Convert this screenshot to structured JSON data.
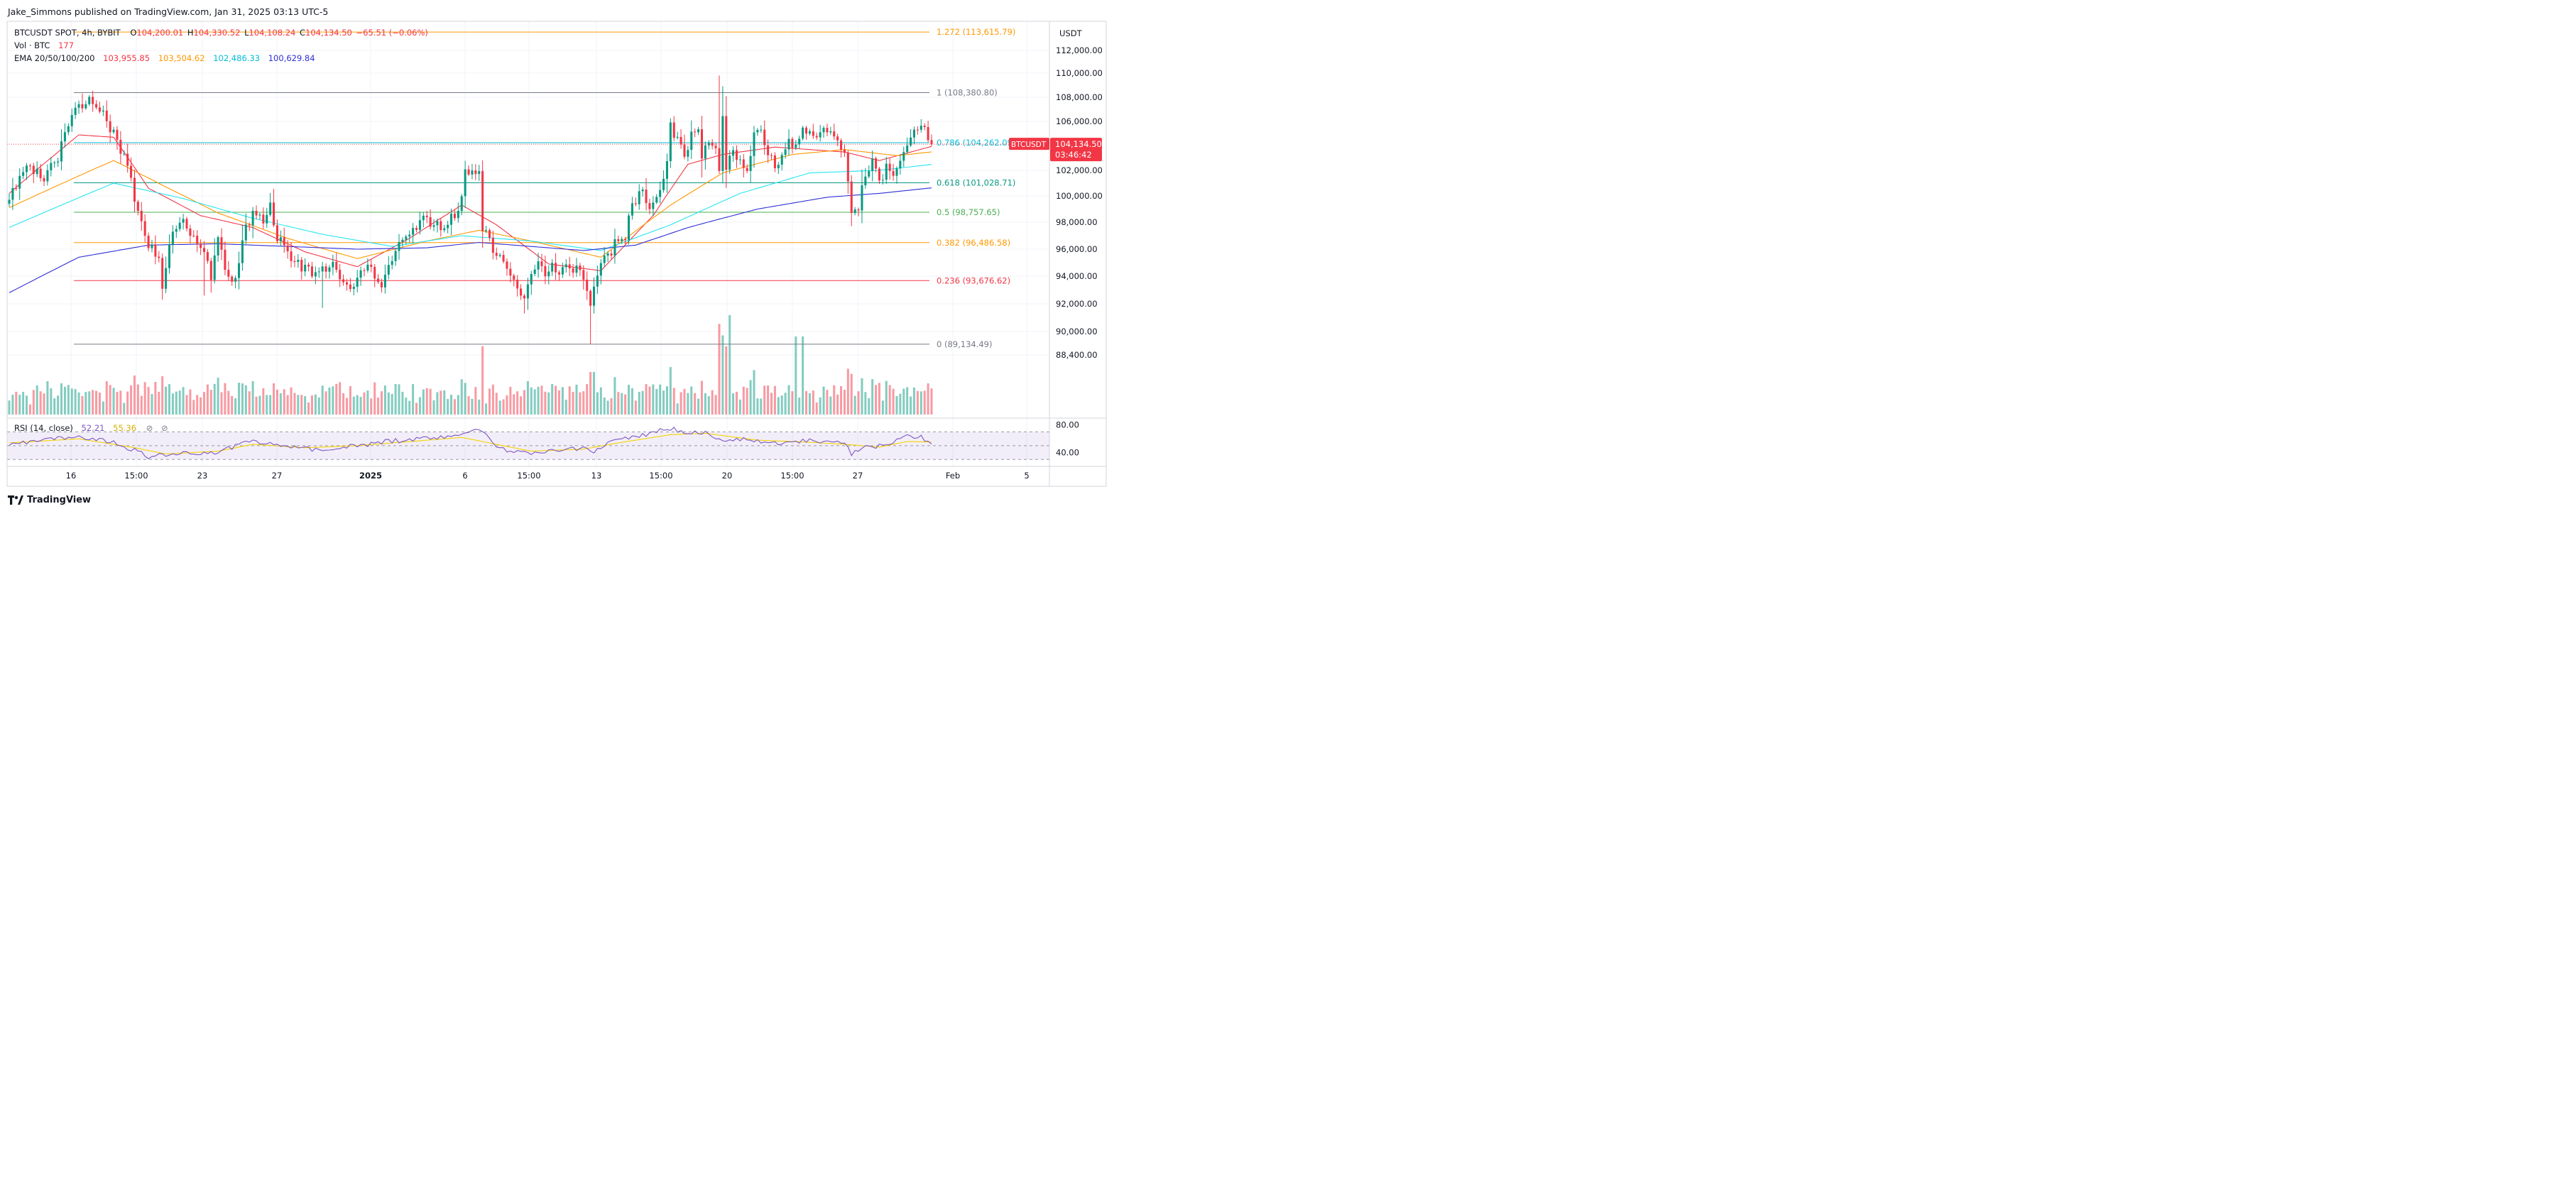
{
  "publisher": "Jake_Simmons published on TradingView.com, Jan 31, 2025 03:13 UTC-5",
  "legend": {
    "symbol": "BTCUSDT SPOT, 4h, BYBIT",
    "o_key": "O",
    "o": "104,200.01",
    "h_key": "H",
    "h": "104,330.52",
    "l_key": "L",
    "l": "104,108.24",
    "c_key": "C",
    "c": "104,134.50",
    "change": "−65.51 (−0.06%)",
    "vol_label": "Vol · BTC",
    "vol": "177",
    "ema_label": "EMA 20/50/100/200",
    "ema": [
      "103,955.85",
      "103,504.62",
      "102,486.33",
      "100,629.84"
    ],
    "rsi_label": "RSI (14, close)",
    "rsi": "52.21",
    "rsi_ma": "55.36"
  },
  "currency": "USDT",
  "brand": "TradingView",
  "colors": {
    "up": "#089981",
    "down": "#f23645",
    "ema20": "#f23645",
    "ema50": "#ff9800",
    "ema100": "#26e6f0",
    "ema200": "#2f2fd6",
    "rsi": "#7e57c2",
    "rsi_ma": "#f5d300"
  },
  "price_label": {
    "value": "104,134.50",
    "countdown": "03:46:42"
  },
  "chart_data": [
    {
      "type": "candlestick",
      "title": "BTCUSDT SPOT, 4h, BYBIT",
      "ylim": [
        88400,
        112000
      ],
      "y_ticks": [
        {
          "value": 112000,
          "label": "112,000.00"
        },
        {
          "value": 110000,
          "label": "110,000.00"
        },
        {
          "value": 108000,
          "label": "108,000.00"
        },
        {
          "value": 106000,
          "label": "106,000.00"
        },
        {
          "value": 102000,
          "label": "102,000.00"
        },
        {
          "value": 100000,
          "label": "100,000.00"
        },
        {
          "value": 98000,
          "label": "98,000.00"
        },
        {
          "value": 96000,
          "label": "96,000.00"
        },
        {
          "value": 94000,
          "label": "94,000.00"
        },
        {
          "value": 92000,
          "label": "92,000.00"
        },
        {
          "value": 90000,
          "label": "90,000.00"
        },
        {
          "value": 88400,
          "label": "88,400.00"
        }
      ],
      "x_ticks": [
        "16",
        "15:00",
        "23",
        "27",
        "2025",
        "6",
        "15:00",
        "13",
        "15:00",
        "20",
        "15:00",
        "27",
        "Feb",
        "5"
      ],
      "close_path": [
        [
          0,
          99900
        ],
        [
          3,
          101500
        ],
        [
          6,
          102400
        ],
        [
          10,
          101300
        ],
        [
          14,
          103200
        ],
        [
          18,
          106500
        ],
        [
          20,
          107300
        ],
        [
          23,
          107900
        ],
        [
          27,
          106700
        ],
        [
          31,
          104600
        ],
        [
          34,
          102400
        ],
        [
          37,
          98900
        ],
        [
          40,
          96300
        ],
        [
          43,
          95200
        ],
        [
          44,
          93400
        ],
        [
          47,
          97200
        ],
        [
          50,
          98400
        ],
        [
          53,
          96600
        ],
        [
          56,
          95700
        ],
        [
          58,
          94300
        ],
        [
          60,
          96400
        ],
        [
          62,
          94900
        ],
        [
          64,
          93200
        ],
        [
          66,
          95100
        ],
        [
          68,
          97900
        ],
        [
          70,
          98700
        ],
        [
          73,
          98200
        ],
        [
          75,
          99300
        ],
        [
          77,
          97100
        ],
        [
          79,
          96100
        ],
        [
          81,
          95400
        ],
        [
          84,
          94600
        ],
        [
          87,
          94300
        ],
        [
          90,
          94600
        ],
        [
          93,
          94800
        ],
        [
          95,
          93700
        ],
        [
          97,
          93000
        ],
        [
          100,
          93600
        ],
        [
          103,
          94900
        ],
        [
          105,
          93900
        ],
        [
          107,
          93600
        ],
        [
          110,
          95200
        ],
        [
          113,
          96700
        ],
        [
          116,
          97400
        ],
        [
          119,
          98300
        ],
        [
          122,
          98100
        ],
        [
          124,
          97400
        ],
        [
          126,
          98000
        ],
        [
          128,
          98700
        ],
        [
          130,
          99600
        ],
        [
          131,
          101800
        ],
        [
          133,
          101900
        ],
        [
          135,
          101700
        ],
        [
          136,
          97900
        ],
        [
          138,
          96500
        ],
        [
          140,
          95600
        ],
        [
          142,
          94900
        ],
        [
          144,
          94300
        ],
        [
          146,
          92900
        ],
        [
          148,
          92500
        ],
        [
          150,
          94100
        ],
        [
          152,
          95100
        ],
        [
          154,
          94200
        ],
        [
          156,
          94600
        ],
        [
          158,
          94300
        ],
        [
          160,
          94400
        ],
        [
          162,
          94600
        ],
        [
          164,
          94100
        ],
        [
          166,
          93300
        ],
        [
          167,
          91900
        ],
        [
          169,
          94300
        ],
        [
          171,
          95300
        ],
        [
          173,
          96100
        ],
        [
          175,
          96700
        ],
        [
          177,
          97100
        ],
        [
          179,
          99400
        ],
        [
          181,
          100100
        ],
        [
          183,
          99800
        ],
        [
          185,
          99100
        ],
        [
          187,
          100600
        ],
        [
          189,
          102300
        ],
        [
          190,
          105600
        ],
        [
          192,
          104500
        ],
        [
          194,
          103400
        ],
        [
          196,
          104900
        ],
        [
          198,
          105300
        ],
        [
          199,
          103400
        ],
        [
          201,
          104100
        ],
        [
          203,
          103800
        ],
        [
          204,
          101400
        ],
        [
          205,
          106600
        ],
        [
          206,
          102600
        ],
        [
          208,
          103300
        ],
        [
          210,
          102800
        ],
        [
          212,
          101600
        ],
        [
          214,
          105200
        ],
        [
          216,
          104900
        ],
        [
          218,
          103200
        ],
        [
          220,
          102500
        ],
        [
          222,
          102900
        ],
        [
          224,
          104400
        ],
        [
          226,
          104100
        ],
        [
          228,
          105500
        ],
        [
          230,
          104600
        ],
        [
          232,
          105100
        ],
        [
          234,
          104900
        ],
        [
          236,
          105200
        ],
        [
          238,
          104600
        ],
        [
          240,
          103300
        ],
        [
          241,
          101200
        ],
        [
          242,
          98900
        ],
        [
          244,
          99200
        ],
        [
          246,
          101600
        ],
        [
          248,
          102700
        ],
        [
          250,
          101400
        ],
        [
          252,
          102100
        ],
        [
          254,
          101800
        ],
        [
          256,
          102500
        ],
        [
          258,
          104300
        ],
        [
          260,
          105300
        ],
        [
          262,
          105600
        ],
        [
          264,
          104600
        ],
        [
          265,
          104134.5
        ]
      ],
      "ema_paths": {
        "ema20": [
          [
            0,
            100200
          ],
          [
            20,
            104900
          ],
          [
            30,
            104700
          ],
          [
            40,
            100600
          ],
          [
            55,
            98500
          ],
          [
            70,
            97600
          ],
          [
            85,
            95800
          ],
          [
            100,
            94700
          ],
          [
            115,
            96800
          ],
          [
            130,
            99300
          ],
          [
            140,
            97800
          ],
          [
            155,
            94900
          ],
          [
            170,
            94400
          ],
          [
            185,
            98500
          ],
          [
            195,
            102500
          ],
          [
            205,
            103300
          ],
          [
            220,
            103900
          ],
          [
            240,
            103500
          ],
          [
            250,
            102800
          ],
          [
            265,
            103955.85
          ]
        ],
        "ema50": [
          [
            0,
            99100
          ],
          [
            30,
            102800
          ],
          [
            45,
            100700
          ],
          [
            60,
            98700
          ],
          [
            80,
            96800
          ],
          [
            100,
            95300
          ],
          [
            120,
            96600
          ],
          [
            135,
            97400
          ],
          [
            150,
            96600
          ],
          [
            170,
            95400
          ],
          [
            190,
            99300
          ],
          [
            205,
            101800
          ],
          [
            225,
            103300
          ],
          [
            240,
            103700
          ],
          [
            255,
            103200
          ],
          [
            265,
            103504.62
          ]
        ],
        "ema100": [
          [
            0,
            97600
          ],
          [
            30,
            101000
          ],
          [
            50,
            99800
          ],
          [
            70,
            98300
          ],
          [
            90,
            97100
          ],
          [
            110,
            96200
          ],
          [
            130,
            97000
          ],
          [
            150,
            96600
          ],
          [
            170,
            95900
          ],
          [
            190,
            97800
          ],
          [
            210,
            100200
          ],
          [
            230,
            101800
          ],
          [
            250,
            102000
          ],
          [
            265,
            102486.33
          ]
        ],
        "ema200": [
          [
            0,
            92800
          ],
          [
            20,
            95400
          ],
          [
            40,
            96300
          ],
          [
            60,
            96400
          ],
          [
            80,
            96200
          ],
          [
            100,
            96000
          ],
          [
            120,
            96100
          ],
          [
            135,
            96500
          ],
          [
            150,
            96200
          ],
          [
            165,
            95900
          ],
          [
            180,
            96300
          ],
          [
            195,
            97600
          ],
          [
            215,
            99000
          ],
          [
            235,
            99900
          ],
          [
            250,
            100200
          ],
          [
            265,
            100629.84
          ]
        ]
      },
      "fib_levels": [
        {
          "ratio": "1.272",
          "value": 113615.79,
          "label": "1.272 (113,615.79)",
          "color": "#ff9800"
        },
        {
          "ratio": "1",
          "value": 108380.8,
          "label": "1 (108,380.80)",
          "color": "#787b86"
        },
        {
          "ratio": "0.786",
          "value": 104262.09,
          "label": "0.786 (104,262.09)",
          "color": "#00bcd4"
        },
        {
          "ratio": "0.618",
          "value": 101028.71,
          "label": "0.618 (101,028.71)",
          "color": "#089981"
        },
        {
          "ratio": "0.5",
          "value": 98757.65,
          "label": "0.5 (98,757.65)",
          "color": "#4caf50"
        },
        {
          "ratio": "0.382",
          "value": 96486.58,
          "label": "0.382 (96,486.58)",
          "color": "#ff9800"
        },
        {
          "ratio": "0.236",
          "value": 93676.62,
          "label": "0.236 (93,676.62)",
          "color": "#f23645"
        },
        {
          "ratio": "0",
          "value": 89134.49,
          "label": "0 (89,134.49)",
          "color": "#787b86"
        }
      ],
      "last_price": 104134.5
    },
    {
      "type": "bar",
      "title": "Vol · BTC",
      "last_value": 177
    },
    {
      "type": "line",
      "title": "RSI (14, close)",
      "ylim": [
        20,
        90
      ],
      "y_ticks": [
        {
          "value": 80,
          "label": "80.00"
        },
        {
          "value": 40,
          "label": "40.00"
        }
      ],
      "bands": [
        70,
        50,
        30
      ],
      "rsi_path": [
        [
          0,
          52
        ],
        [
          10,
          58
        ],
        [
          20,
          63
        ],
        [
          30,
          56
        ],
        [
          40,
          34
        ],
        [
          50,
          38
        ],
        [
          60,
          41
        ],
        [
          70,
          58
        ],
        [
          80,
          48
        ],
        [
          90,
          44
        ],
        [
          100,
          50
        ],
        [
          110,
          57
        ],
        [
          120,
          60
        ],
        [
          130,
          66
        ],
        [
          135,
          76
        ],
        [
          140,
          46
        ],
        [
          150,
          38
        ],
        [
          160,
          44
        ],
        [
          165,
          47
        ],
        [
          168,
          39
        ],
        [
          172,
          55
        ],
        [
          180,
          63
        ],
        [
          190,
          75
        ],
        [
          195,
          66
        ],
        [
          200,
          71
        ],
        [
          205,
          57
        ],
        [
          210,
          60
        ],
        [
          220,
          54
        ],
        [
          230,
          57
        ],
        [
          240,
          53
        ],
        [
          242,
          37
        ],
        [
          246,
          48
        ],
        [
          252,
          50
        ],
        [
          258,
          64
        ],
        [
          262,
          62
        ],
        [
          265,
          52.21
        ]
      ],
      "rsi_ma_path": [
        [
          0,
          54
        ],
        [
          20,
          60
        ],
        [
          35,
          48
        ],
        [
          45,
          38
        ],
        [
          60,
          42
        ],
        [
          70,
          52
        ],
        [
          85,
          47
        ],
        [
          100,
          50
        ],
        [
          115,
          56
        ],
        [
          130,
          62
        ],
        [
          140,
          52
        ],
        [
          150,
          42
        ],
        [
          165,
          45
        ],
        [
          175,
          54
        ],
        [
          190,
          66
        ],
        [
          200,
          68
        ],
        [
          215,
          58
        ],
        [
          230,
          55
        ],
        [
          240,
          52
        ],
        [
          250,
          48
        ],
        [
          258,
          56
        ],
        [
          265,
          55.36
        ]
      ]
    }
  ]
}
